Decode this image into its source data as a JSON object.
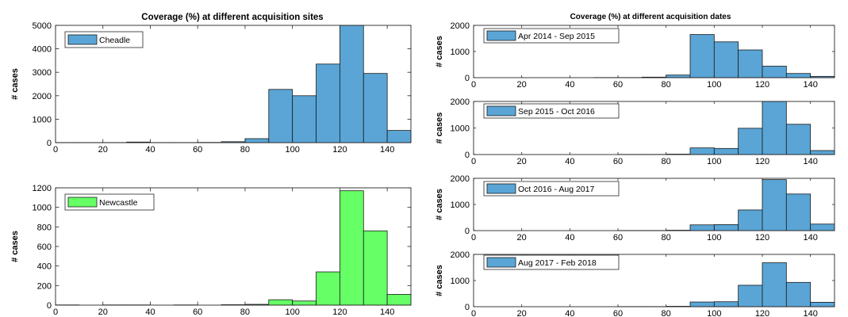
{
  "figure": {
    "left_title": "Coverage (%) at different acquisition sites",
    "right_title": "Coverage (%) at different acquisition dates"
  },
  "chart_data": [
    {
      "type": "bar",
      "id": "cheadle",
      "legend": "Cheadle",
      "color": "#5aa5d6",
      "ylabel": "# cases",
      "xlim": [
        0,
        150
      ],
      "ylim": [
        0,
        5000
      ],
      "xticks": [
        0,
        20,
        40,
        60,
        80,
        100,
        120,
        140
      ],
      "yticks": [
        0,
        1000,
        2000,
        3000,
        4000,
        5000
      ],
      "bin_edges": [
        0,
        10,
        20,
        30,
        40,
        50,
        60,
        70,
        80,
        90,
        100,
        110,
        120,
        130,
        140,
        150
      ],
      "values": [
        5,
        5,
        5,
        25,
        5,
        5,
        10,
        40,
        170,
        2270,
        2000,
        3350,
        5000,
        2950,
        520
      ]
    },
    {
      "type": "bar",
      "id": "newcastle",
      "legend": "Newcastle",
      "color": "#66ff66",
      "ylabel": "# cases",
      "xlim": [
        0,
        150
      ],
      "ylim": [
        0,
        1200
      ],
      "xticks": [
        0,
        20,
        40,
        60,
        80,
        100,
        120,
        140
      ],
      "yticks": [
        0,
        200,
        400,
        600,
        800,
        1000,
        1200
      ],
      "bin_edges": [
        0,
        10,
        20,
        30,
        40,
        50,
        60,
        70,
        80,
        90,
        100,
        110,
        120,
        130,
        140,
        150
      ],
      "values": [
        2,
        0,
        2,
        2,
        0,
        2,
        0,
        4,
        8,
        55,
        42,
        340,
        1170,
        760,
        110
      ]
    },
    {
      "type": "bar",
      "id": "date1",
      "legend": "Apr 2014 - Sep 2015",
      "color": "#5aa5d6",
      "ylabel": "# cases",
      "xlim": [
        0,
        150
      ],
      "ylim": [
        0,
        2000
      ],
      "xticks": [
        0,
        20,
        40,
        60,
        80,
        100,
        120,
        140
      ],
      "yticks": [
        0,
        1000,
        2000
      ],
      "bin_edges": [
        0,
        10,
        20,
        30,
        40,
        50,
        60,
        70,
        80,
        90,
        100,
        110,
        120,
        130,
        140,
        150
      ],
      "values": [
        0,
        0,
        0,
        0,
        0,
        5,
        5,
        20,
        100,
        1650,
        1370,
        1060,
        440,
        160,
        50
      ]
    },
    {
      "type": "bar",
      "id": "date2",
      "legend": "Sep 2015 - Oct 2016",
      "color": "#5aa5d6",
      "ylabel": "# cases",
      "xlim": [
        0,
        150
      ],
      "ylim": [
        0,
        2000
      ],
      "xticks": [
        0,
        20,
        40,
        60,
        80,
        100,
        120,
        140
      ],
      "yticks": [
        0,
        1000,
        2000
      ],
      "bin_edges": [
        0,
        10,
        20,
        30,
        40,
        50,
        60,
        70,
        80,
        90,
        100,
        110,
        120,
        130,
        140,
        150
      ],
      "values": [
        0,
        0,
        0,
        0,
        0,
        0,
        5,
        5,
        15,
        250,
        230,
        990,
        2100,
        1140,
        150
      ]
    },
    {
      "type": "bar",
      "id": "date3",
      "legend": "Oct 2016 - Aug 2017",
      "color": "#5aa5d6",
      "ylabel": "# cases",
      "xlim": [
        0,
        150
      ],
      "ylim": [
        0,
        2000
      ],
      "xticks": [
        0,
        20,
        40,
        60,
        80,
        100,
        120,
        140
      ],
      "yticks": [
        0,
        1000,
        2000
      ],
      "bin_edges": [
        0,
        10,
        20,
        30,
        40,
        50,
        60,
        70,
        80,
        90,
        100,
        110,
        120,
        130,
        140,
        150
      ],
      "values": [
        0,
        0,
        0,
        0,
        0,
        0,
        5,
        5,
        15,
        220,
        230,
        790,
        1950,
        1400,
        250
      ]
    },
    {
      "type": "bar",
      "id": "date4",
      "legend": "Aug 2017 - Feb 2018",
      "color": "#5aa5d6",
      "ylabel": "# cases",
      "xlim": [
        0,
        150
      ],
      "ylim": [
        0,
        2000
      ],
      "xticks": [
        0,
        20,
        40,
        60,
        80,
        100,
        120,
        140
      ],
      "yticks": [
        0,
        1000,
        2000
      ],
      "bin_edges": [
        0,
        10,
        20,
        30,
        40,
        50,
        60,
        70,
        80,
        90,
        100,
        110,
        120,
        130,
        140,
        150
      ],
      "values": [
        0,
        0,
        0,
        0,
        0,
        0,
        5,
        5,
        15,
        180,
        190,
        820,
        1680,
        930,
        170
      ]
    }
  ]
}
